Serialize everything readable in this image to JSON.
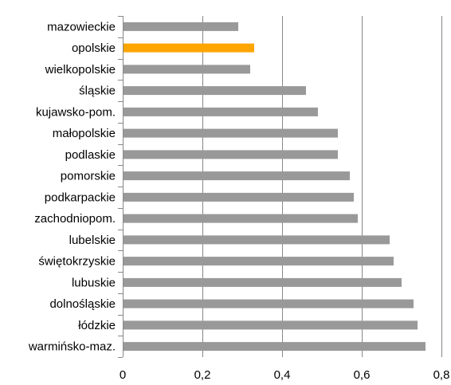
{
  "chart_data": {
    "type": "bar",
    "orientation": "horizontal",
    "categories": [
      "mazowieckie",
      "opolskie",
      "wielkopolskie",
      "śląskie",
      "kujawsko-pom.",
      "małopolskie",
      "podlaskie",
      "pomorskie",
      "podkarpackie",
      "zachodniopom.",
      "lubelskie",
      "świętokrzyskie",
      "lubuskie",
      "dolnośląskie",
      "łódzkie",
      "warmińsko-maz."
    ],
    "values": [
      0.29,
      0.33,
      0.32,
      0.46,
      0.49,
      0.54,
      0.54,
      0.57,
      0.58,
      0.59,
      0.67,
      0.68,
      0.7,
      0.73,
      0.74,
      0.76
    ],
    "highlight": "opolskie",
    "xlim": [
      0,
      0.8
    ],
    "xticks": [
      0,
      0.2,
      0.4,
      0.6,
      0.8
    ],
    "xtick_labels": [
      "0",
      "0,2",
      "0,4",
      "0,6",
      "0,8"
    ],
    "grid": "vertical",
    "colors": {
      "bar": "#999999",
      "highlight": "#ffa500",
      "grid": "#888888",
      "axis": "#888888"
    }
  }
}
